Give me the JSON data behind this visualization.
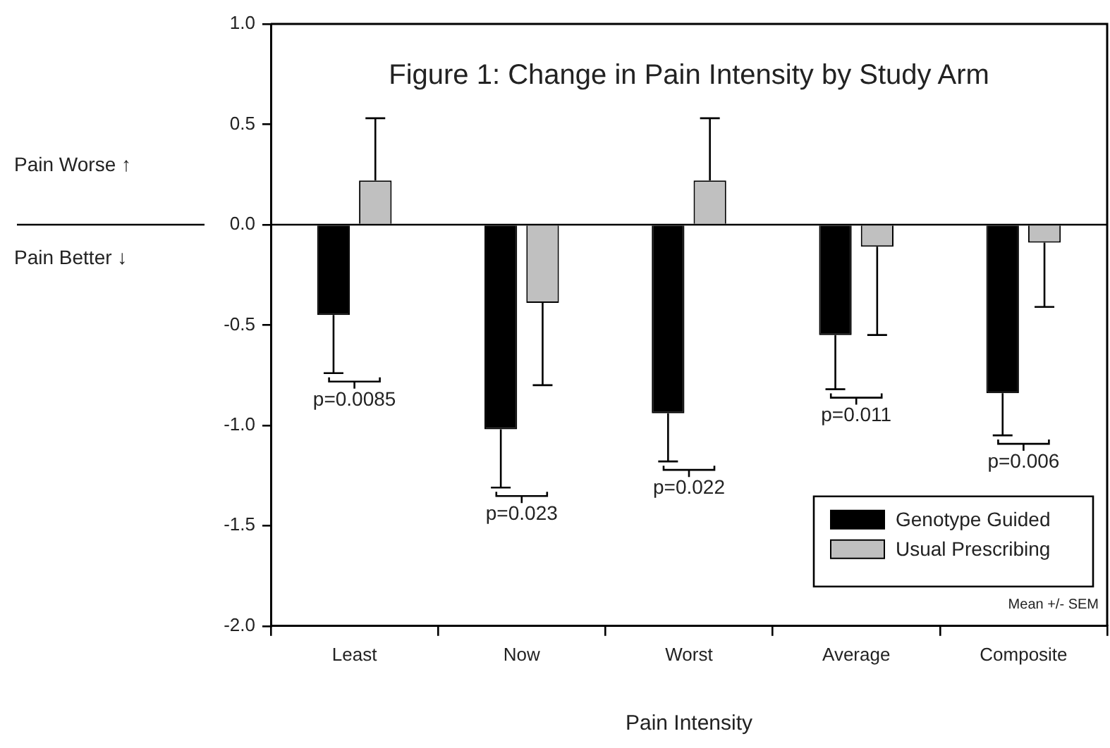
{
  "chart_data": {
    "type": "bar",
    "title": "Figure 1: Change in Pain Intensity by Study Arm",
    "xlabel": "Pain Intensity",
    "categories": [
      "Least",
      "Now",
      "Worst",
      "Average",
      "Composite"
    ],
    "series": [
      {
        "name": "Genotype Guided",
        "color": "#000000",
        "values": [
          -0.45,
          -1.02,
          -0.94,
          -0.55,
          -0.84
        ],
        "errors": [
          [
            -0.74,
            -0.45
          ],
          [
            -1.31,
            -1.02
          ],
          [
            -1.18,
            -0.94
          ],
          [
            -0.82,
            -0.55
          ],
          [
            -1.05,
            -0.84
          ]
        ]
      },
      {
        "name": "Usual Prescribing",
        "color": "#c0c0c0",
        "values": [
          0.22,
          -0.39,
          0.22,
          -0.11,
          -0.09
        ],
        "errors": [
          [
            0.22,
            0.53
          ],
          [
            -0.8,
            -0.39
          ],
          [
            0.22,
            0.53
          ],
          [
            -0.55,
            -0.11
          ],
          [
            -0.41,
            -0.09
          ]
        ]
      }
    ],
    "ylim": [
      -2,
      1
    ],
    "yticks": [
      {
        "value": -2,
        "label": "-2.0"
      },
      {
        "value": -1.5,
        "label": "-1.5"
      },
      {
        "value": -1,
        "label": "-1.0"
      },
      {
        "value": -0.5,
        "label": "-0.5"
      },
      {
        "value": 0,
        "label": "0.0"
      },
      {
        "value": 0.5,
        "label": "0.5"
      },
      {
        "value": 1,
        "label": "1.0"
      }
    ],
    "ref_lines": [
      {
        "axis": "y",
        "value": 0,
        "color": "#000000"
      }
    ],
    "annotations": [
      "Pain Worse ↑",
      "Pain Better ↓",
      "Mean +/- SEM",
      "p=0.0085",
      "p=0.023",
      "p=0.022",
      "p=0.011",
      "p=0.006"
    ],
    "legend": "bottom right",
    "grid": false
  }
}
